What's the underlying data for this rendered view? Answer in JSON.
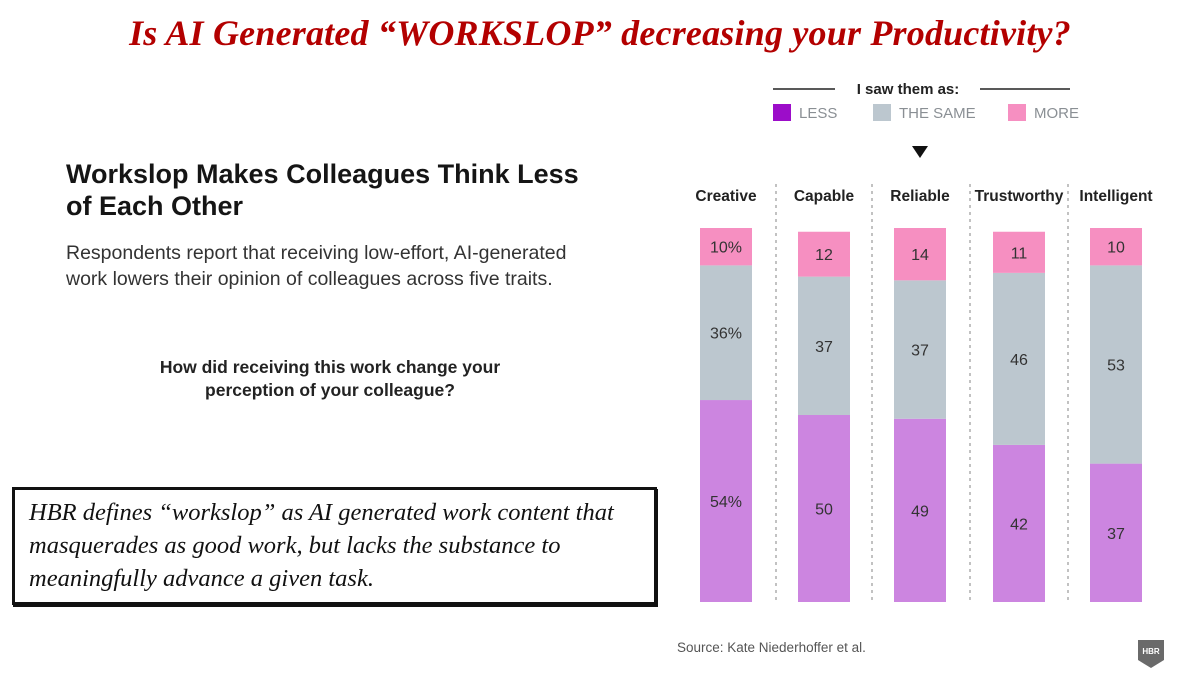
{
  "slide": {
    "title": "Is AI Generated “WORKSLOP” decreasing your Productivity?"
  },
  "chart_header": {
    "title": "Workslop Makes Colleagues Think Less of Each Other",
    "subtitle": "Respondents report that receiving low-effort, AI-generated work lowers their opinion of colleagues across five traits.",
    "question": "How did receiving this work change your perception of your colleague?"
  },
  "quote": {
    "text": "HBR defines “workslop” as AI generated work content that masquerades as good work, but lacks the substance to meaningfully advance a given task."
  },
  "source": "Source: Kate Niederhoffer et al.",
  "logo_text": "HBR",
  "chart_data": {
    "type": "bar",
    "stacked": true,
    "percent_stacked": true,
    "legend_title": "I saw them as:",
    "legend_position": "top",
    "categories": [
      "Creative",
      "Capable",
      "Reliable",
      "Trustworthy",
      "Intelligent"
    ],
    "series": [
      {
        "name": "LESS",
        "color": "#cc85e0",
        "values": [
          54,
          50,
          49,
          42,
          37
        ],
        "labels": [
          "54%",
          "50",
          "49",
          "42",
          "37"
        ]
      },
      {
        "name": "THE SAME",
        "color": "#bcc7cf",
        "values": [
          36,
          37,
          37,
          46,
          53
        ],
        "labels": [
          "36%",
          "37",
          "37",
          "46",
          "53"
        ]
      },
      {
        "name": "MORE",
        "color": "#f68fc1",
        "values": [
          10,
          12,
          14,
          11,
          10
        ],
        "labels": [
          "10%",
          "12",
          "14",
          "11",
          "10"
        ]
      }
    ],
    "legend_swatch_colors": [
      "#9c0dc9",
      "#bcc7cf",
      "#f68fc1"
    ],
    "ylim": [
      0,
      100
    ],
    "grid": false
  }
}
